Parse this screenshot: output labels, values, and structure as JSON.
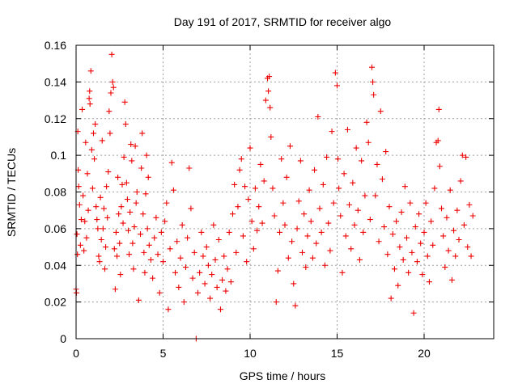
{
  "chart_data": {
    "type": "scatter",
    "title": "Day 191 of 2017, SRMTID for receiver algo",
    "xlabel": "GPS time / hours",
    "ylabel": "SRMTID / TECUs",
    "xlim": [
      0,
      24
    ],
    "ylim": [
      0,
      0.16
    ],
    "xticks": [
      0,
      5,
      10,
      15,
      20
    ],
    "xtick_labels": [
      "0",
      "5",
      "10",
      "15",
      "20"
    ],
    "yticks": [
      0,
      0.02,
      0.04,
      0.06,
      0.08,
      0.1,
      0.12,
      0.14,
      0.16
    ],
    "ytick_labels": [
      "0",
      "0.02",
      "0.04",
      "0.06",
      "0.08",
      "0.1",
      "0.12",
      "0.14",
      "0.16"
    ],
    "grid": true,
    "marker": "plus",
    "color": "#ee0000",
    "series": [
      {
        "name": "SRMTID",
        "points": [
          [
            0.0,
            0.027
          ],
          [
            0.02,
            0.025
          ],
          [
            0.05,
            0.057
          ],
          [
            0.08,
            0.046
          ],
          [
            0.1,
            0.113
          ],
          [
            0.12,
            0.092
          ],
          [
            0.15,
            0.083
          ],
          [
            0.2,
            0.073
          ],
          [
            0.25,
            0.051
          ],
          [
            0.3,
            0.065
          ],
          [
            0.35,
            0.125
          ],
          [
            0.4,
            0.078
          ],
          [
            0.45,
            0.048
          ],
          [
            0.5,
            0.064
          ],
          [
            0.55,
            0.107
          ],
          [
            0.6,
            0.055
          ],
          [
            0.65,
            0.09
          ],
          [
            0.7,
            0.07
          ],
          [
            0.75,
            0.131
          ],
          [
            0.78,
            0.135
          ],
          [
            0.8,
            0.128
          ],
          [
            0.85,
            0.146
          ],
          [
            0.9,
            0.103
          ],
          [
            0.95,
            0.082
          ],
          [
            1.0,
            0.112
          ],
          [
            1.05,
            0.098
          ],
          [
            1.1,
            0.117
          ],
          [
            1.15,
            0.072
          ],
          [
            1.2,
            0.065
          ],
          [
            1.25,
            0.06
          ],
          [
            1.3,
            0.045
          ],
          [
            1.35,
            0.042
          ],
          [
            1.4,
            0.077
          ],
          [
            1.45,
            0.054
          ],
          [
            1.5,
            0.108
          ],
          [
            1.55,
            0.06
          ],
          [
            1.6,
            0.071
          ],
          [
            1.65,
            0.038
          ],
          [
            1.7,
            0.05
          ],
          [
            1.75,
            0.083
          ],
          [
            1.8,
            0.066
          ],
          [
            1.85,
            0.091
          ],
          [
            1.9,
            0.124
          ],
          [
            1.95,
            0.112
          ],
          [
            2.0,
            0.134
          ],
          [
            2.05,
            0.155
          ],
          [
            2.1,
            0.14
          ],
          [
            2.15,
            0.137
          ],
          [
            2.2,
            0.049
          ],
          [
            2.25,
            0.027
          ],
          [
            2.3,
            0.058
          ],
          [
            2.35,
            0.045
          ],
          [
            2.4,
            0.088
          ],
          [
            2.45,
            0.068
          ],
          [
            2.5,
            0.052
          ],
          [
            2.55,
            0.035
          ],
          [
            2.6,
            0.072
          ],
          [
            2.65,
            0.084
          ],
          [
            2.7,
            0.063
          ],
          [
            2.75,
            0.099
          ],
          [
            2.8,
            0.129
          ],
          [
            2.85,
            0.117
          ],
          [
            2.9,
            0.085
          ],
          [
            2.95,
            0.076
          ],
          [
            3.0,
            0.059
          ],
          [
            3.05,
            0.046
          ],
          [
            3.1,
            0.069
          ],
          [
            3.15,
            0.106
          ],
          [
            3.2,
            0.097
          ],
          [
            3.25,
            0.052
          ],
          [
            3.3,
            0.038
          ],
          [
            3.35,
            0.061
          ],
          [
            3.4,
            0.105
          ],
          [
            3.45,
            0.074
          ],
          [
            3.5,
            0.08
          ],
          [
            3.6,
            0.021
          ],
          [
            3.7,
            0.057
          ],
          [
            3.75,
            0.093
          ],
          [
            3.8,
            0.112
          ],
          [
            3.85,
            0.068
          ],
          [
            3.9,
            0.047
          ],
          [
            3.95,
            0.036
          ],
          [
            4.0,
            0.079
          ],
          [
            4.05,
            0.1
          ],
          [
            4.1,
            0.06
          ],
          [
            4.15,
            0.088
          ],
          [
            4.2,
            0.051
          ],
          [
            4.3,
            0.043
          ],
          [
            4.4,
            0.033
          ],
          [
            4.5,
            0.055
          ],
          [
            4.6,
            0.066
          ],
          [
            4.7,
            0.046
          ],
          [
            4.8,
            0.025
          ],
          [
            4.9,
            0.058
          ],
          [
            5.0,
            0.042
          ],
          [
            5.1,
            0.064
          ],
          [
            5.2,
            0.074
          ],
          [
            5.3,
            0.016
          ],
          [
            5.4,
            0.049
          ],
          [
            5.5,
            0.096
          ],
          [
            5.6,
            0.081
          ],
          [
            5.7,
            0.036
          ],
          [
            5.8,
            0.053
          ],
          [
            5.9,
            0.028
          ],
          [
            6.0,
            0.044
          ],
          [
            6.1,
            0.062
          ],
          [
            6.2,
            0.02
          ],
          [
            6.3,
            0.039
          ],
          [
            6.4,
            0.055
          ],
          [
            6.5,
            0.093
          ],
          [
            6.6,
            0.071
          ],
          [
            6.7,
            0.033
          ],
          [
            6.8,
            0.047
          ],
          [
            6.9,
            0.0
          ],
          [
            7.0,
            0.025
          ],
          [
            7.1,
            0.036
          ],
          [
            7.2,
            0.058
          ],
          [
            7.3,
            0.045
          ],
          [
            7.4,
            0.03
          ],
          [
            7.5,
            0.05
          ],
          [
            7.6,
            0.04
          ],
          [
            7.7,
            0.022
          ],
          [
            7.8,
            0.035
          ],
          [
            7.9,
            0.062
          ],
          [
            8.0,
            0.043
          ],
          [
            8.1,
            0.028
          ],
          [
            8.2,
            0.054
          ],
          [
            8.3,
            0.016
          ],
          [
            8.4,
            0.032
          ],
          [
            8.5,
            0.045
          ],
          [
            8.6,
            0.026
          ],
          [
            8.7,
            0.038
          ],
          [
            8.8,
            0.058
          ],
          [
            8.9,
            0.031
          ],
          [
            9.0,
            0.068
          ],
          [
            9.1,
            0.084
          ],
          [
            9.2,
            0.047
          ],
          [
            9.3,
            0.072
          ],
          [
            9.4,
            0.092
          ],
          [
            9.5,
            0.098
          ],
          [
            9.6,
            0.056
          ],
          [
            9.7,
            0.083
          ],
          [
            9.8,
            0.042
          ],
          [
            9.9,
            0.076
          ],
          [
            10.0,
            0.104
          ],
          [
            10.1,
            0.064
          ],
          [
            10.2,
            0.049
          ],
          [
            10.3,
            0.082
          ],
          [
            10.4,
            0.059
          ],
          [
            10.5,
            0.072
          ],
          [
            10.6,
            0.095
          ],
          [
            10.7,
            0.063
          ],
          [
            10.8,
            0.086
          ],
          [
            10.9,
            0.13
          ],
          [
            11.0,
            0.142
          ],
          [
            11.05,
            0.135
          ],
          [
            11.1,
            0.143
          ],
          [
            11.15,
            0.126
          ],
          [
            11.2,
            0.11
          ],
          [
            11.3,
            0.082
          ],
          [
            11.4,
            0.067
          ],
          [
            11.5,
            0.02
          ],
          [
            11.6,
            0.037
          ],
          [
            11.7,
            0.058
          ],
          [
            11.8,
            0.098
          ],
          [
            11.9,
            0.074
          ],
          [
            12.0,
            0.062
          ],
          [
            12.1,
            0.088
          ],
          [
            12.2,
            0.044
          ],
          [
            12.3,
            0.105
          ],
          [
            12.4,
            0.053
          ],
          [
            12.5,
            0.03
          ],
          [
            12.6,
            0.018
          ],
          [
            12.7,
            0.06
          ],
          [
            12.8,
            0.075
          ],
          [
            12.9,
            0.097
          ],
          [
            13.0,
            0.047
          ],
          [
            13.1,
            0.068
          ],
          [
            13.2,
            0.039
          ],
          [
            13.3,
            0.056
          ],
          [
            13.4,
            0.081
          ],
          [
            13.5,
            0.064
          ],
          [
            13.6,
            0.044
          ],
          [
            13.7,
            0.092
          ],
          [
            13.8,
            0.052
          ],
          [
            13.9,
            0.121
          ],
          [
            14.0,
            0.071
          ],
          [
            14.1,
            0.058
          ],
          [
            14.2,
            0.084
          ],
          [
            14.3,
            0.04
          ],
          [
            14.4,
            0.099
          ],
          [
            14.5,
            0.063
          ],
          [
            14.6,
            0.048
          ],
          [
            14.7,
            0.113
          ],
          [
            14.8,
            0.074
          ],
          [
            14.9,
            0.145
          ],
          [
            15.0,
            0.138
          ],
          [
            15.05,
            0.098
          ],
          [
            15.1,
            0.082
          ],
          [
            15.2,
            0.067
          ],
          [
            15.3,
            0.036
          ],
          [
            15.4,
            0.09
          ],
          [
            15.5,
            0.056
          ],
          [
            15.6,
            0.114
          ],
          [
            15.7,
            0.073
          ],
          [
            15.8,
            0.049
          ],
          [
            15.9,
            0.085
          ],
          [
            16.0,
            0.062
          ],
          [
            16.1,
            0.104
          ],
          [
            16.2,
            0.07
          ],
          [
            16.3,
            0.043
          ],
          [
            16.4,
            0.097
          ],
          [
            16.5,
            0.058
          ],
          [
            16.6,
            0.078
          ],
          [
            16.7,
            0.118
          ],
          [
            16.8,
            0.107
          ],
          [
            16.9,
            0.065
          ],
          [
            17.0,
            0.148
          ],
          [
            17.05,
            0.14
          ],
          [
            17.1,
            0.133
          ],
          [
            17.2,
            0.078
          ],
          [
            17.3,
            0.095
          ],
          [
            17.4,
            0.053
          ],
          [
            17.5,
            0.124
          ],
          [
            17.6,
            0.087
          ],
          [
            17.7,
            0.061
          ],
          [
            17.8,
            0.102
          ],
          [
            17.9,
            0.046
          ],
          [
            18.0,
            0.072
          ],
          [
            18.1,
            0.022
          ],
          [
            18.2,
            0.057
          ],
          [
            18.3,
            0.038
          ],
          [
            18.4,
            0.064
          ],
          [
            18.5,
            0.029
          ],
          [
            18.6,
            0.05
          ],
          [
            18.7,
            0.069
          ],
          [
            18.8,
            0.043
          ],
          [
            18.9,
            0.083
          ],
          [
            19.0,
            0.055
          ],
          [
            19.1,
            0.036
          ],
          [
            19.2,
            0.074
          ],
          [
            19.3,
            0.047
          ],
          [
            19.4,
            0.014
          ],
          [
            19.5,
            0.061
          ],
          [
            19.6,
            0.042
          ],
          [
            19.7,
            0.068
          ],
          [
            19.8,
            0.052
          ],
          [
            19.9,
            0.035
          ],
          [
            20.0,
            0.058
          ],
          [
            20.1,
            0.074
          ],
          [
            20.2,
            0.045
          ],
          [
            20.3,
            0.031
          ],
          [
            20.4,
            0.064
          ],
          [
            20.5,
            0.051
          ],
          [
            20.6,
            0.082
          ],
          [
            20.7,
            0.107
          ],
          [
            20.8,
            0.108
          ],
          [
            20.85,
            0.125
          ],
          [
            20.9,
            0.094
          ],
          [
            21.0,
            0.071
          ],
          [
            21.1,
            0.056
          ],
          [
            21.2,
            0.039
          ],
          [
            21.3,
            0.066
          ],
          [
            21.4,
            0.048
          ],
          [
            21.5,
            0.081
          ],
          [
            21.6,
            0.032
          ],
          [
            21.7,
            0.059
          ],
          [
            21.8,
            0.045
          ],
          [
            21.9,
            0.07
          ],
          [
            22.0,
            0.054
          ],
          [
            22.1,
            0.086
          ],
          [
            22.2,
            0.1
          ],
          [
            22.3,
            0.062
          ],
          [
            22.4,
            0.099
          ],
          [
            22.5,
            0.05
          ],
          [
            22.6,
            0.073
          ],
          [
            22.7,
            0.045
          ],
          [
            22.8,
            0.067
          ]
        ]
      }
    ]
  }
}
